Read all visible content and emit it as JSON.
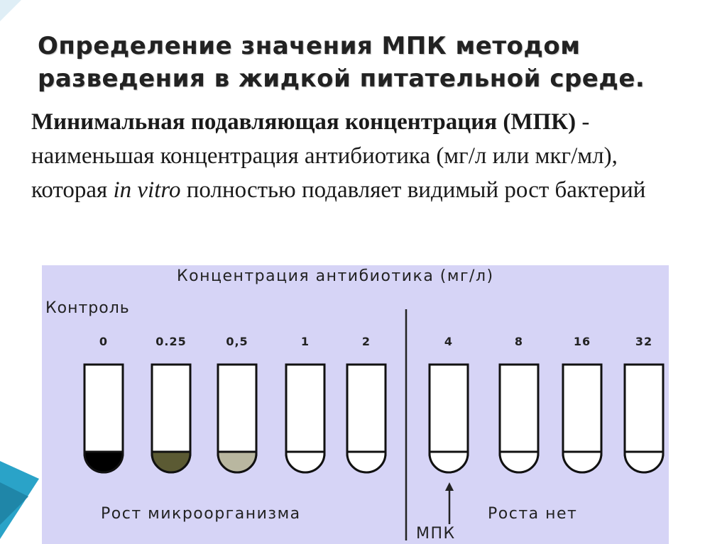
{
  "slide": {
    "title_line1": "Определение значения МПК методом",
    "title_line2": "разведения в жидкой питательной среде.",
    "definition": {
      "term": "Минимальная подавляющая концентрация (МПК)",
      "text_part1": " - наименьшая концентрация антибиотика (мг/л или мкг/мл), которая ",
      "italic": "in vitro",
      "text_part2": " полностью подавляет видимый рост бактерий"
    },
    "accent_color": "#2aa3c8"
  },
  "figure": {
    "title": "Концентрация антибиотика (мг/л)",
    "control_label": "Контроль",
    "concentrations": [
      "0",
      "0.25",
      "0,5",
      "1",
      "2",
      "4",
      "8",
      "16",
      "32"
    ],
    "growth_label": "Рост микроорганизма",
    "no_growth_label": "Роста нет",
    "mic_label": "МПК",
    "background": "#d6d4f6",
    "tube_fill_colors": [
      "#000000",
      "#5b5a33",
      "#b9b7a0",
      "#ffffff",
      "#ffffff",
      "#ffffff",
      "#ffffff",
      "#ffffff",
      "#ffffff"
    ]
  }
}
